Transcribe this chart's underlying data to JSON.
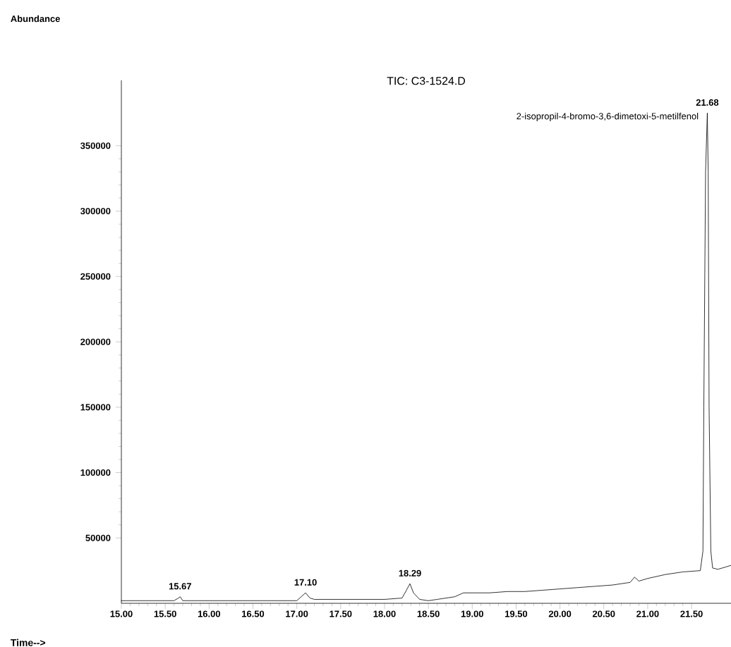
{
  "chart_data": {
    "type": "line",
    "title": "TIC: C3-1524.D",
    "xlabel": "Time-->",
    "x": [
      15.0,
      15.3,
      15.6,
      15.65,
      15.67,
      15.7,
      16.0,
      16.5,
      17.0,
      17.05,
      17.1,
      17.15,
      17.2,
      17.5,
      17.8,
      18.0,
      18.2,
      18.25,
      18.29,
      18.33,
      18.4,
      18.5,
      18.6,
      18.8,
      18.9,
      19.0,
      19.2,
      19.4,
      19.6,
      19.8,
      20.0,
      20.2,
      20.4,
      20.6,
      20.8,
      20.85,
      20.9,
      21.0,
      21.2,
      21.4,
      21.6,
      21.63,
      21.64,
      21.66,
      21.68,
      21.69,
      21.7,
      21.72,
      21.74,
      21.8,
      21.9,
      21.95
    ],
    "values": [
      2000,
      2000,
      2000,
      4000,
      5000,
      2000,
      2000,
      2000,
      2000,
      5000,
      8000,
      4000,
      3000,
      3000,
      3000,
      3000,
      4000,
      10000,
      15000,
      8000,
      3000,
      2000,
      3000,
      5000,
      8000,
      8000,
      8000,
      9000,
      9000,
      10000,
      11000,
      12000,
      13000,
      14000,
      16000,
      20000,
      17000,
      19000,
      22000,
      24000,
      25000,
      40000,
      150000,
      330000,
      375000,
      330000,
      150000,
      40000,
      27000,
      26000,
      28000,
      29000
    ],
    "color": "#000000",
    "line_style": "solid",
    "marker": "none",
    "grid": false,
    "xlim": [
      15.0,
      21.95
    ],
    "ylim": [
      0,
      400000
    ],
    "xticks": [
      {
        "value": 15.0,
        "label": "15.00"
      },
      {
        "value": 15.5,
        "label": "15.50"
      },
      {
        "value": 16.0,
        "label": "16.00"
      },
      {
        "value": 16.5,
        "label": "16.50"
      },
      {
        "value": 17.0,
        "label": "17.00"
      },
      {
        "value": 17.5,
        "label": "17.50"
      },
      {
        "value": 18.0,
        "label": "18.00"
      },
      {
        "value": 18.5,
        "label": "18.50"
      },
      {
        "value": 19.0,
        "label": "19.00"
      },
      {
        "value": 19.5,
        "label": "19.50"
      },
      {
        "value": 20.0,
        "label": "20.00"
      },
      {
        "value": 20.5,
        "label": "20.50"
      },
      {
        "value": 21.0,
        "label": "21.00"
      },
      {
        "value": 21.5,
        "label": "21.50"
      }
    ],
    "yticks": [
      50000,
      100000,
      150000,
      200000,
      250000,
      300000,
      350000
    ],
    "annotations": [
      {
        "text": "15.67",
        "x": 15.67,
        "y": 5000
      },
      {
        "text": "17.10",
        "x": 17.1,
        "y": 8000
      },
      {
        "text": "18.29",
        "x": 18.29,
        "y": 15000
      },
      {
        "text": "21.68",
        "x": 21.68,
        "y": 375000
      },
      "2-isopropil-4-bromo-3,6-dimetoxi-5-metilfenol",
      "Abundance"
    ]
  }
}
